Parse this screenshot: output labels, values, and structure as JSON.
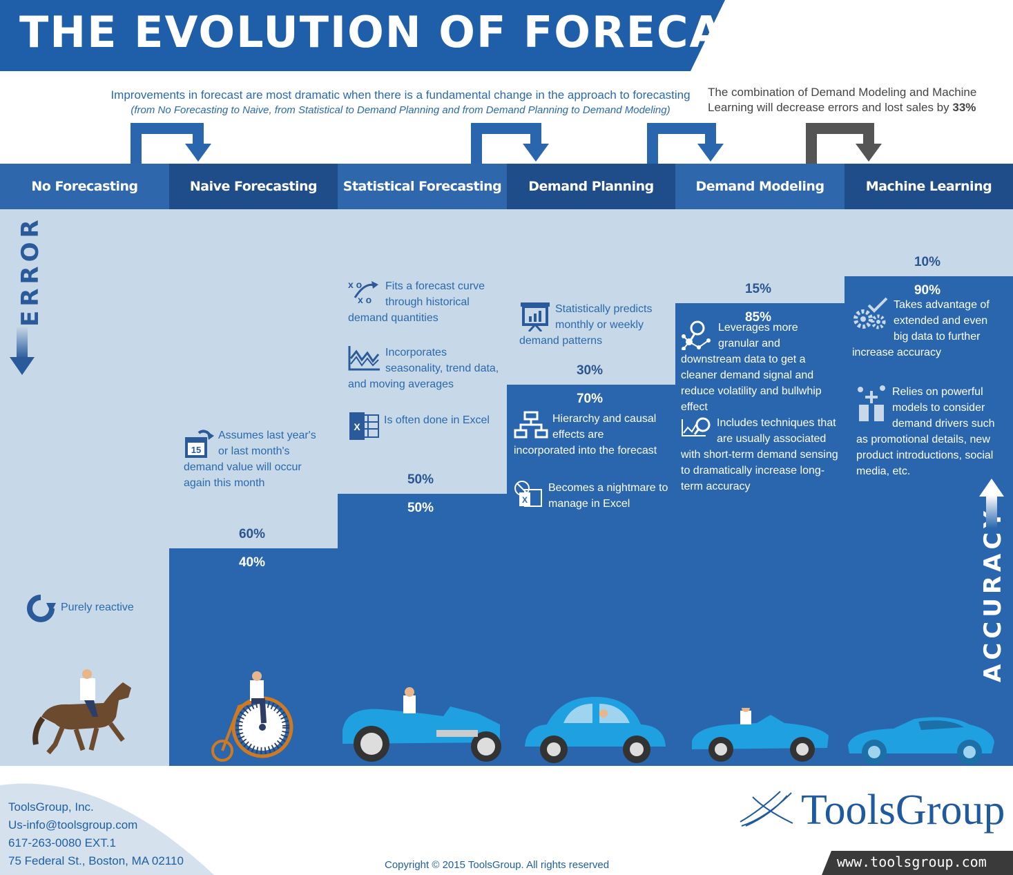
{
  "header": {
    "title": "THE EVOLUTION OF FORECASTING",
    "bar_color": "#1f5ea8"
  },
  "notes": {
    "improvements_line1": "Improvements in forecast are most dramatic when there is a fundamental change in the approach to forecasting",
    "improvements_line2": "(from No Forecasting to Naive, from Statistical to Demand Planning and from Demand Planning to Demand Modeling)",
    "combination_text": "The combination of Demand Modeling and Machine Learning will decrease errors and lost sales by",
    "combination_value": "33%"
  },
  "axes": {
    "error_label": "ERROR",
    "accuracy_label": "ACCURACY"
  },
  "stages": [
    {
      "name": "No Forecasting",
      "error": null,
      "accuracy": 0,
      "error_label": "",
      "accuracy_label": "",
      "features": [
        {
          "icon": "refresh-icon",
          "text": "Purely reactive"
        }
      ],
      "vehicle": "horse-rider-icon"
    },
    {
      "name": "Naive Forecasting",
      "error": 60,
      "accuracy": 40,
      "error_label": "60%",
      "accuracy_label": "40%",
      "features": [
        {
          "icon": "calendar-icon",
          "text": "Assumes last year's or last month's demand value will occur again this month"
        }
      ],
      "vehicle": "penny-farthing-icon"
    },
    {
      "name": "Statistical Forecasting",
      "error": 50,
      "accuracy": 50,
      "error_label": "50%",
      "accuracy_label": "50%",
      "features": [
        {
          "icon": "strategy-icon",
          "text": "Fits a forecast curve through historical demand quantities"
        },
        {
          "icon": "line-chart-icon",
          "text": "Incorporates seasonality, trend data, and moving averages"
        },
        {
          "icon": "excel-icon",
          "text": "Is often done in Excel"
        }
      ],
      "vehicle": "vintage-car-icon"
    },
    {
      "name": "Demand Planning",
      "error": 30,
      "accuracy": 70,
      "error_label": "30%",
      "accuracy_label": "70%",
      "features": [
        {
          "icon": "presentation-icon",
          "text": "Statistically predicts monthly or weekly demand patterns"
        },
        {
          "icon": "hierarchy-icon",
          "text": "Hierarchy and causal effects are incorporated into the forecast"
        },
        {
          "icon": "excel-no-icon",
          "text": "Becomes a nightmare to manage in Excel"
        }
      ],
      "vehicle": "beetle-car-icon"
    },
    {
      "name": "Demand Modeling",
      "error": 15,
      "accuracy": 85,
      "error_label": "15%",
      "accuracy_label": "85%",
      "features": [
        {
          "icon": "network-search-icon",
          "text": "Leverages more granular and downstream data to get a cleaner demand signal and reduce volatility and bullwhip effect"
        },
        {
          "icon": "chart-search-icon",
          "text": "Includes techniques that are usually associated with short-term demand sensing to dramatically increase long-term accuracy"
        }
      ],
      "vehicle": "convertible-car-icon"
    },
    {
      "name": "Machine Learning",
      "error": 10,
      "accuracy": 90,
      "error_label": "10%",
      "accuracy_label": "90%",
      "features": [
        {
          "icon": "gears-check-icon",
          "text": "Takes advantage of extended and even big data to further increase accuracy"
        },
        {
          "icon": "social-drivers-icon",
          "text": "Relies on powerful models to consider demand drivers such as promotional details, new product introductions, social media, etc."
        }
      ],
      "vehicle": "sports-car-icon"
    }
  ],
  "footer": {
    "company": "ToolsGroup, Inc.",
    "email": "Us-info@toolsgroup.com",
    "phone": "617-263-0080 EXT.1",
    "address": "75 Federal St., Boston, MA 02110",
    "copyright": "Copyright © 2015 ToolsGroup. All rights reserved",
    "logo_text": "ToolsGroup",
    "website": "www.toolsgroup.com"
  },
  "colors": {
    "accuracy_blue": "#2966ad",
    "error_light": "#c7d8e8",
    "stage_dark": "#1f4d8a",
    "stage_mid": "#2e67ab"
  }
}
